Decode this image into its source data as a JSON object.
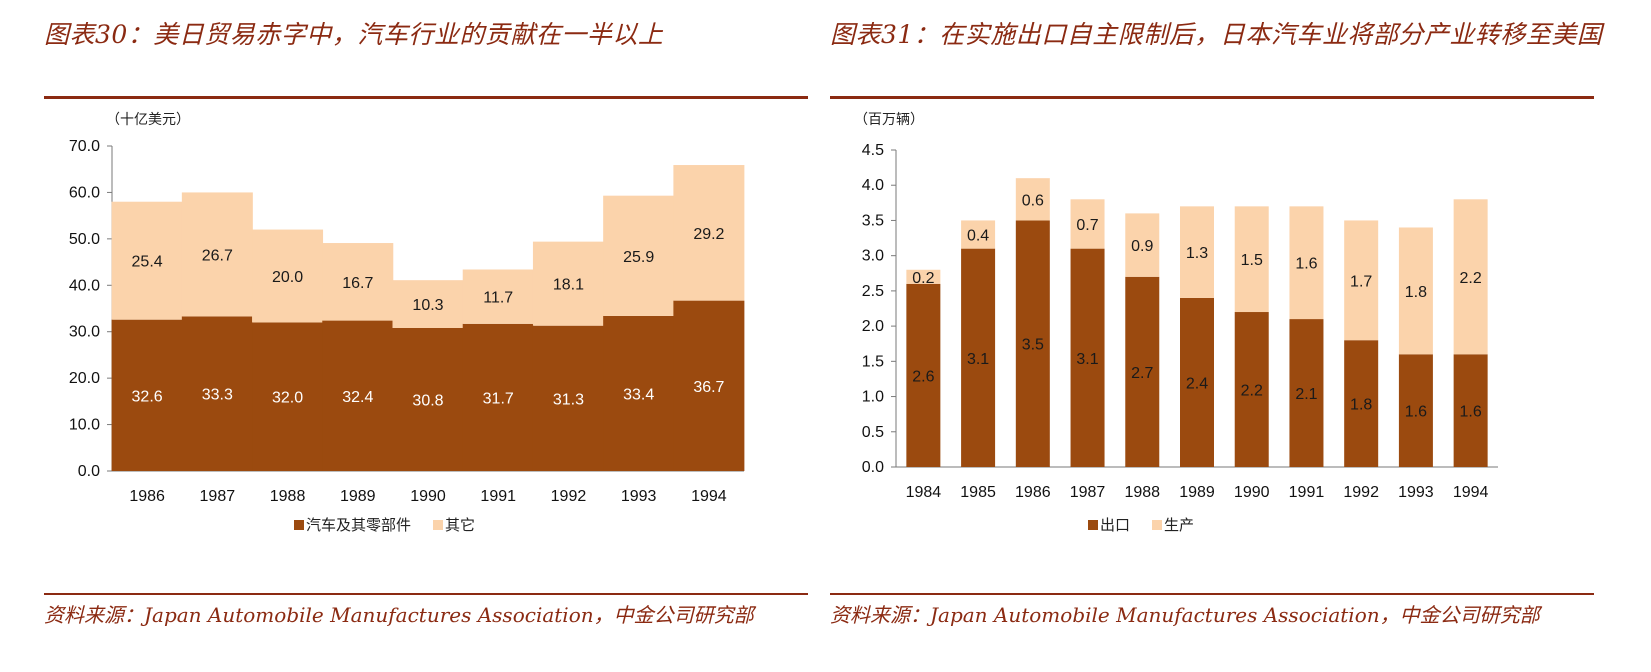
{
  "colors": {
    "dark": "#9b4a0f",
    "light": "#fbd3ab",
    "accent": "#8b2a12",
    "axis": "#7a7a7a"
  },
  "left_panel": {
    "title": "图表30：美日贸易赤字中，汽车行业的贡献在一半以上",
    "source": "资料来源：Japan Automobile Manufactures Association，中金公司研究部"
  },
  "right_panel": {
    "title": "图表31：在实施出口自主限制后，日本汽车业将部分产业转移至美国",
    "source": "资料来源：Japan Automobile Manufactures Association，中金公司研究部"
  },
  "chart_data": [
    {
      "type": "bar",
      "stacked": true,
      "unit_label": "（十亿美元）",
      "categories": [
        "1986",
        "1987",
        "1988",
        "1989",
        "1990",
        "1991",
        "1992",
        "1993",
        "1994"
      ],
      "series": [
        {
          "name": "汽车及其零部件",
          "color": "dark",
          "values": [
            32.6,
            33.3,
            32.0,
            32.4,
            30.8,
            31.7,
            31.3,
            33.4,
            36.7
          ]
        },
        {
          "name": "其它",
          "color": "light",
          "values": [
            25.4,
            26.7,
            20.0,
            16.7,
            10.3,
            11.7,
            18.1,
            25.9,
            29.2
          ]
        }
      ],
      "ylim": [
        0,
        70
      ],
      "yticks": [
        "0.0",
        "10.0",
        "20.0",
        "30.0",
        "40.0",
        "50.0",
        "60.0",
        "70.0"
      ],
      "decimals": 1,
      "legend_position": "bottom"
    },
    {
      "type": "bar",
      "stacked": true,
      "unit_label": "（百万辆）",
      "categories": [
        "1984",
        "1985",
        "1986",
        "1987",
        "1988",
        "1989",
        "1990",
        "1991",
        "1992",
        "1993",
        "1994"
      ],
      "series": [
        {
          "name": "出口",
          "color": "dark",
          "values": [
            2.6,
            3.1,
            3.5,
            3.1,
            2.7,
            2.4,
            2.2,
            2.1,
            1.8,
            1.6,
            1.6
          ]
        },
        {
          "name": "生产",
          "color": "light",
          "values": [
            0.2,
            0.4,
            0.6,
            0.7,
            0.9,
            1.3,
            1.5,
            1.6,
            1.7,
            1.8,
            2.2
          ]
        }
      ],
      "ylim": [
        0,
        4.5
      ],
      "yticks": [
        "0.0",
        "0.5",
        "1.0",
        "1.5",
        "2.0",
        "2.5",
        "3.0",
        "3.5",
        "4.0",
        "4.5"
      ],
      "decimals": 1,
      "legend_position": "bottom"
    }
  ]
}
